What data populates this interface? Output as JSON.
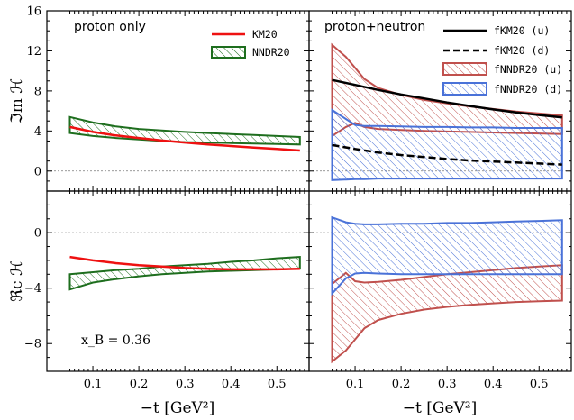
{
  "figure": {
    "xlabel": "−t   [GeV²]",
    "xlabel_right": "−t   [GeV²]",
    "annotation": "x_B = 0.36",
    "colors": {
      "km20": "#ee1111",
      "nndr20": "#1e6e1e",
      "fkm20": "#000000",
      "fnndr20_u": "#c0504d",
      "fnndr20_d": "#4a72d8",
      "zero_line": "#777777"
    }
  },
  "chart_data": [
    {
      "type": "line",
      "panel": "top-left",
      "title": "proton only",
      "ylabel": "ℑm ℋ",
      "xlim": [
        0.0,
        0.57
      ],
      "ylim": [
        -2,
        16
      ],
      "xticks": [
        0.1,
        0.2,
        0.3,
        0.4,
        0.5
      ],
      "yticks": [
        0,
        4,
        8,
        12,
        16
      ],
      "legend_position": "top-right",
      "series": [
        {
          "name": "KM20",
          "kind": "line",
          "color": "#ee1111",
          "x": [
            0.05,
            0.1,
            0.15,
            0.2,
            0.25,
            0.3,
            0.35,
            0.4,
            0.45,
            0.5,
            0.55
          ],
          "y": [
            4.4,
            3.9,
            3.55,
            3.3,
            3.05,
            2.85,
            2.65,
            2.5,
            2.35,
            2.2,
            2.05
          ]
        },
        {
          "name": "NNDR20",
          "kind": "band",
          "color": "#1e6e1e",
          "x": [
            0.05,
            0.1,
            0.15,
            0.2,
            0.25,
            0.3,
            0.35,
            0.4,
            0.45,
            0.5,
            0.55
          ],
          "lower": [
            3.8,
            3.5,
            3.3,
            3.15,
            3.0,
            2.9,
            2.85,
            2.8,
            2.75,
            2.7,
            2.65
          ],
          "upper": [
            5.4,
            4.85,
            4.45,
            4.2,
            4.05,
            3.9,
            3.8,
            3.7,
            3.6,
            3.5,
            3.4
          ]
        }
      ]
    },
    {
      "type": "line",
      "panel": "top-right",
      "title": "proton+neutron",
      "xlim": [
        0.0,
        0.57
      ],
      "ylim": [
        -2,
        16
      ],
      "xticks": [
        0.1,
        0.2,
        0.3,
        0.4,
        0.5
      ],
      "yticks": [
        0,
        4,
        8,
        12,
        16
      ],
      "legend_position": "top-right",
      "series": [
        {
          "name": "fKM20 (u)",
          "kind": "line",
          "style": "solid",
          "color": "#000000",
          "x": [
            0.05,
            0.1,
            0.15,
            0.2,
            0.25,
            0.3,
            0.35,
            0.4,
            0.45,
            0.5,
            0.55
          ],
          "y": [
            9.1,
            8.6,
            8.1,
            7.65,
            7.25,
            6.85,
            6.5,
            6.15,
            5.85,
            5.6,
            5.35
          ]
        },
        {
          "name": "fKM20 (d)",
          "kind": "line",
          "style": "dashed",
          "color": "#000000",
          "x": [
            0.05,
            0.1,
            0.15,
            0.2,
            0.25,
            0.3,
            0.35,
            0.4,
            0.45,
            0.5,
            0.55
          ],
          "y": [
            2.6,
            2.2,
            1.85,
            1.6,
            1.4,
            1.2,
            1.05,
            0.95,
            0.85,
            0.75,
            0.65
          ]
        },
        {
          "name": "fNNDR20 (u)",
          "kind": "band",
          "color": "#c0504d",
          "x": [
            0.05,
            0.08,
            0.1,
            0.12,
            0.15,
            0.2,
            0.25,
            0.3,
            0.35,
            0.4,
            0.45,
            0.5,
            0.55
          ],
          "lower": [
            3.5,
            4.4,
            4.8,
            4.4,
            4.2,
            4.1,
            4.0,
            3.95,
            3.9,
            3.85,
            3.8,
            3.75,
            3.7
          ],
          "upper": [
            12.6,
            11.4,
            10.3,
            9.2,
            8.3,
            7.6,
            7.1,
            6.75,
            6.45,
            6.2,
            5.95,
            5.75,
            5.55
          ]
        },
        {
          "name": "fNNDR20 (d)",
          "kind": "band",
          "color": "#4a72d8",
          "x": [
            0.05,
            0.08,
            0.1,
            0.12,
            0.15,
            0.2,
            0.25,
            0.3,
            0.35,
            0.4,
            0.45,
            0.5,
            0.55
          ],
          "lower": [
            -0.9,
            -0.85,
            -0.8,
            -0.8,
            -0.75,
            -0.75,
            -0.75,
            -0.75,
            -0.75,
            -0.75,
            -0.75,
            -0.75,
            -0.75
          ],
          "upper": [
            6.1,
            5.2,
            4.6,
            4.5,
            4.5,
            4.45,
            4.4,
            4.4,
            4.35,
            4.35,
            4.3,
            4.3,
            4.3
          ]
        }
      ]
    },
    {
      "type": "line",
      "panel": "bottom-left",
      "ylabel": "ℜc ℋ",
      "xlim": [
        0.0,
        0.57
      ],
      "ylim": [
        -10,
        3
      ],
      "xticks": [
        0.1,
        0.2,
        0.3,
        0.4,
        0.5
      ],
      "yticks": [
        -8,
        -4,
        0
      ],
      "series": [
        {
          "name": "KM20",
          "kind": "line",
          "color": "#ee1111",
          "x": [
            0.05,
            0.1,
            0.15,
            0.2,
            0.25,
            0.3,
            0.35,
            0.4,
            0.45,
            0.5,
            0.55
          ],
          "y": [
            -1.75,
            -2.0,
            -2.2,
            -2.35,
            -2.45,
            -2.55,
            -2.6,
            -2.65,
            -2.65,
            -2.65,
            -2.6
          ]
        },
        {
          "name": "NNDR20",
          "kind": "band",
          "color": "#1e6e1e",
          "x": [
            0.05,
            0.1,
            0.15,
            0.2,
            0.25,
            0.3,
            0.35,
            0.4,
            0.45,
            0.5,
            0.55
          ],
          "lower": [
            -4.1,
            -3.6,
            -3.35,
            -3.15,
            -3.0,
            -2.9,
            -2.8,
            -2.75,
            -2.7,
            -2.65,
            -2.6
          ],
          "upper": [
            -3.0,
            -2.85,
            -2.7,
            -2.6,
            -2.45,
            -2.35,
            -2.25,
            -2.1,
            -2.0,
            -1.85,
            -1.75
          ]
        }
      ]
    },
    {
      "type": "line",
      "panel": "bottom-right",
      "xlim": [
        0.0,
        0.57
      ],
      "ylim": [
        -10,
        3
      ],
      "xticks": [
        0.1,
        0.2,
        0.3,
        0.4,
        0.5
      ],
      "yticks": [
        -8,
        -4,
        0
      ],
      "series": [
        {
          "name": "fNNDR20 (u)",
          "kind": "band",
          "color": "#c0504d",
          "x": [
            0.05,
            0.08,
            0.1,
            0.12,
            0.15,
            0.2,
            0.25,
            0.3,
            0.35,
            0.4,
            0.45,
            0.5,
            0.55
          ],
          "lower": [
            -9.3,
            -8.5,
            -7.7,
            -6.9,
            -6.3,
            -5.85,
            -5.55,
            -5.35,
            -5.2,
            -5.1,
            -5.0,
            -4.95,
            -4.9
          ],
          "upper": [
            -3.7,
            -2.9,
            -3.5,
            -3.6,
            -3.55,
            -3.4,
            -3.2,
            -3.0,
            -2.85,
            -2.7,
            -2.55,
            -2.45,
            -2.35
          ]
        },
        {
          "name": "fNNDR20 (d)",
          "kind": "band",
          "color": "#4a72d8",
          "x": [
            0.05,
            0.08,
            0.1,
            0.12,
            0.15,
            0.2,
            0.25,
            0.3,
            0.35,
            0.4,
            0.45,
            0.5,
            0.55
          ],
          "lower": [
            -4.4,
            -3.3,
            -2.95,
            -2.9,
            -2.95,
            -3.0,
            -3.0,
            -3.0,
            -3.0,
            -3.0,
            -3.0,
            -3.0,
            -3.0
          ],
          "upper": [
            1.1,
            0.75,
            0.65,
            0.6,
            0.6,
            0.65,
            0.65,
            0.7,
            0.7,
            0.75,
            0.8,
            0.85,
            0.9
          ]
        }
      ]
    }
  ]
}
